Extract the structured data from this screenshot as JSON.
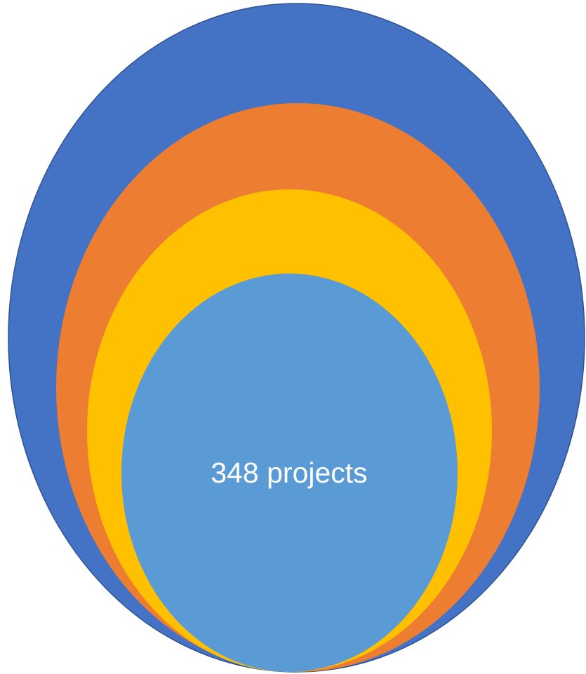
{
  "diagram": {
    "label": "348 projects"
  }
}
